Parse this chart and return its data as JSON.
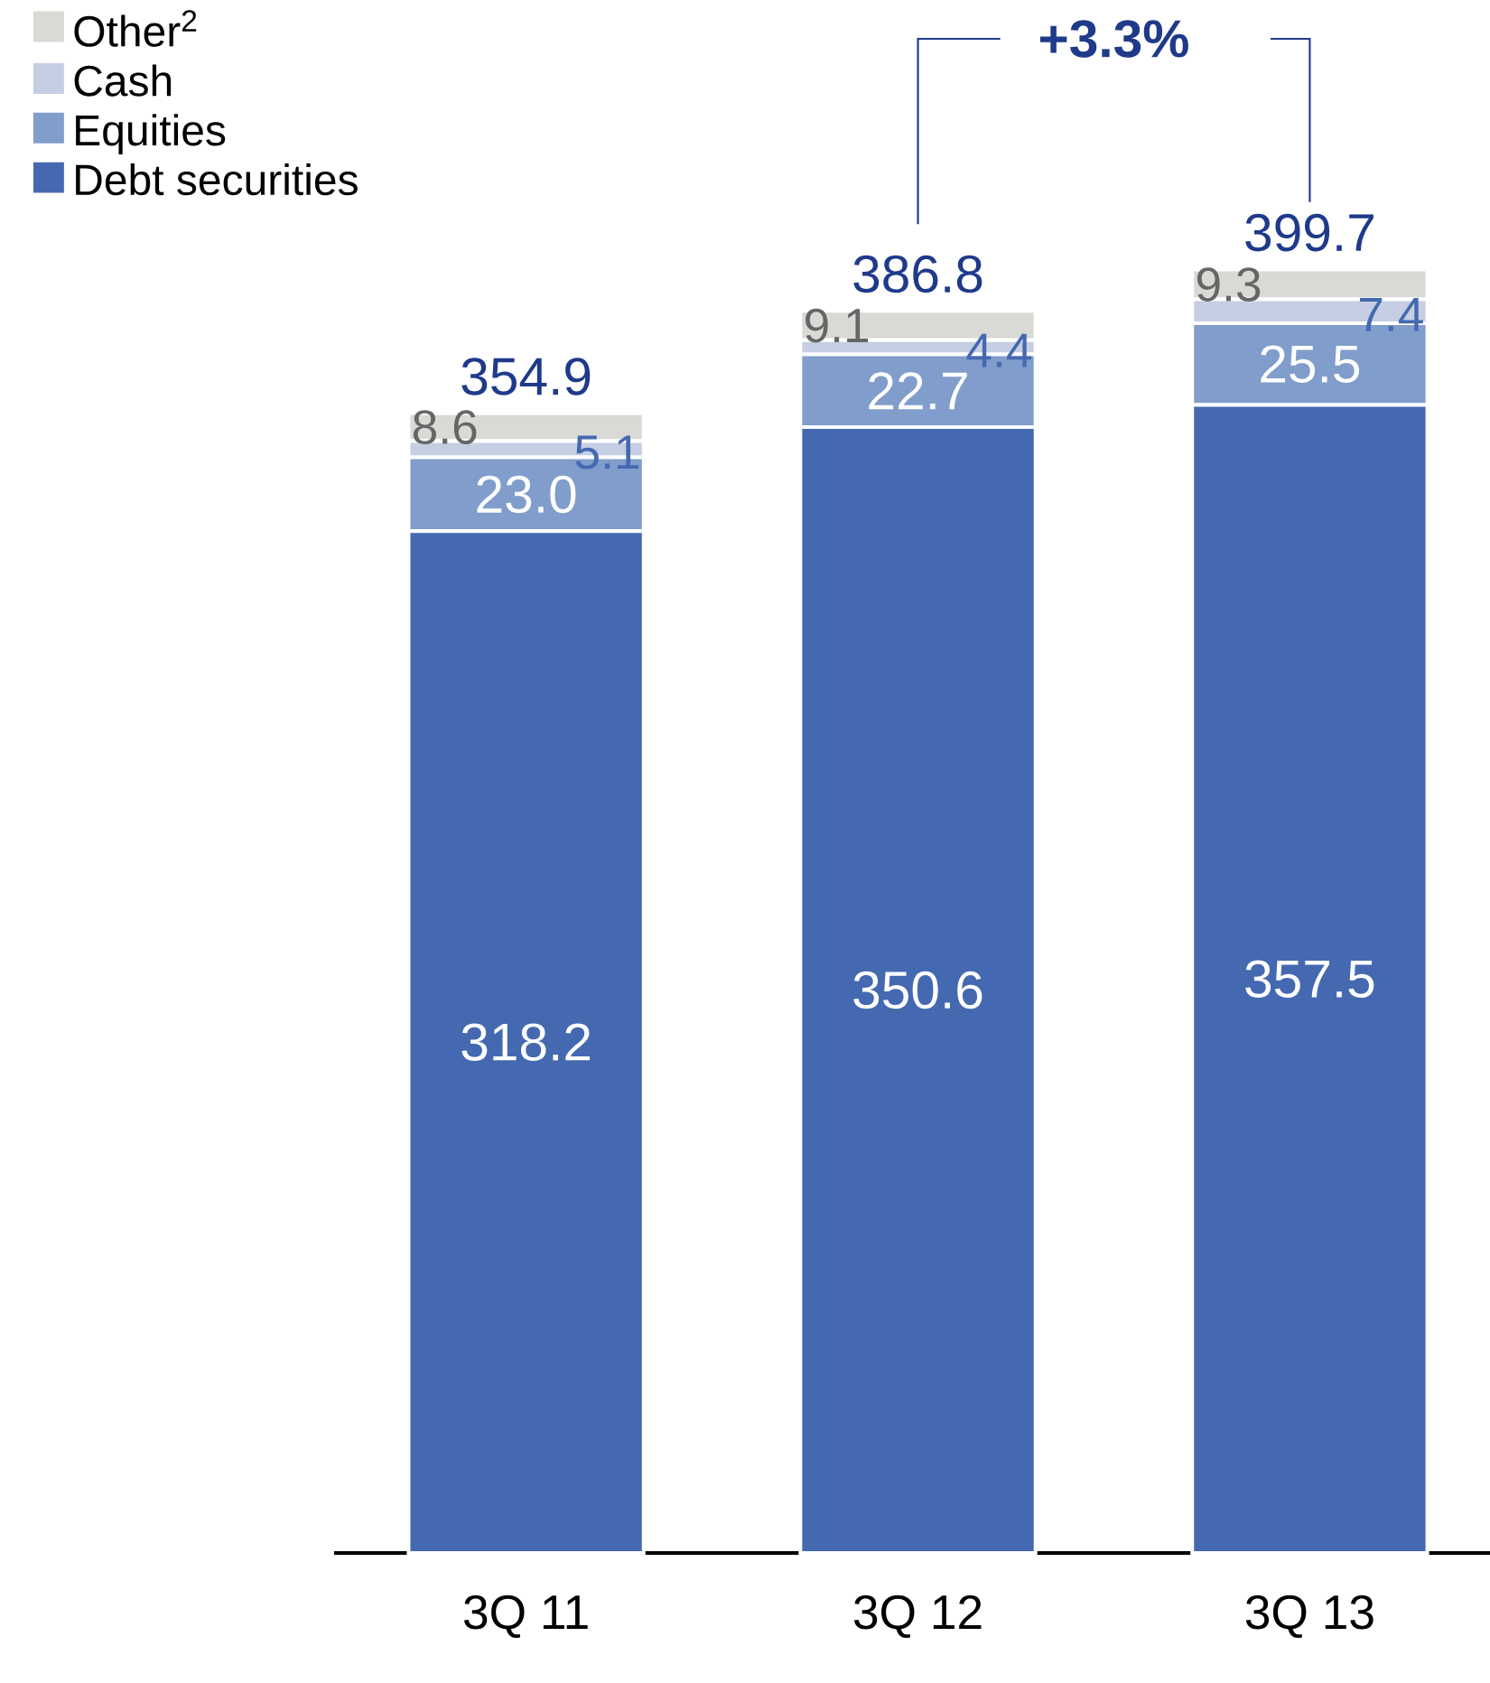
{
  "chart_data": {
    "type": "bar",
    "stacked": true,
    "categories": [
      "3Q 11",
      "3Q 12",
      "3Q 13"
    ],
    "series": [
      {
        "name": "Debt securities",
        "color": "#4469b0",
        "values": [
          318.2,
          350.6,
          357.5
        ]
      },
      {
        "name": "Equities",
        "color": "#809dcb",
        "values": [
          23.0,
          22.7,
          25.5
        ],
        "value_labels": [
          "23.0",
          "22.7",
          "25.5"
        ]
      },
      {
        "name": "Cash",
        "color": "#c5cee2",
        "values": [
          5.1,
          4.4,
          7.4
        ]
      },
      {
        "name": "Other$^{2}$",
        "color": "#d9d9d6",
        "values": [
          8.6,
          9.1,
          9.3
        ]
      }
    ],
    "totals": [
      "354.9",
      "386.8",
      "399.7"
    ],
    "annotations": [
      "+3.3%"
    ],
    "data_labels": true,
    "legend": "top left"
  }
}
